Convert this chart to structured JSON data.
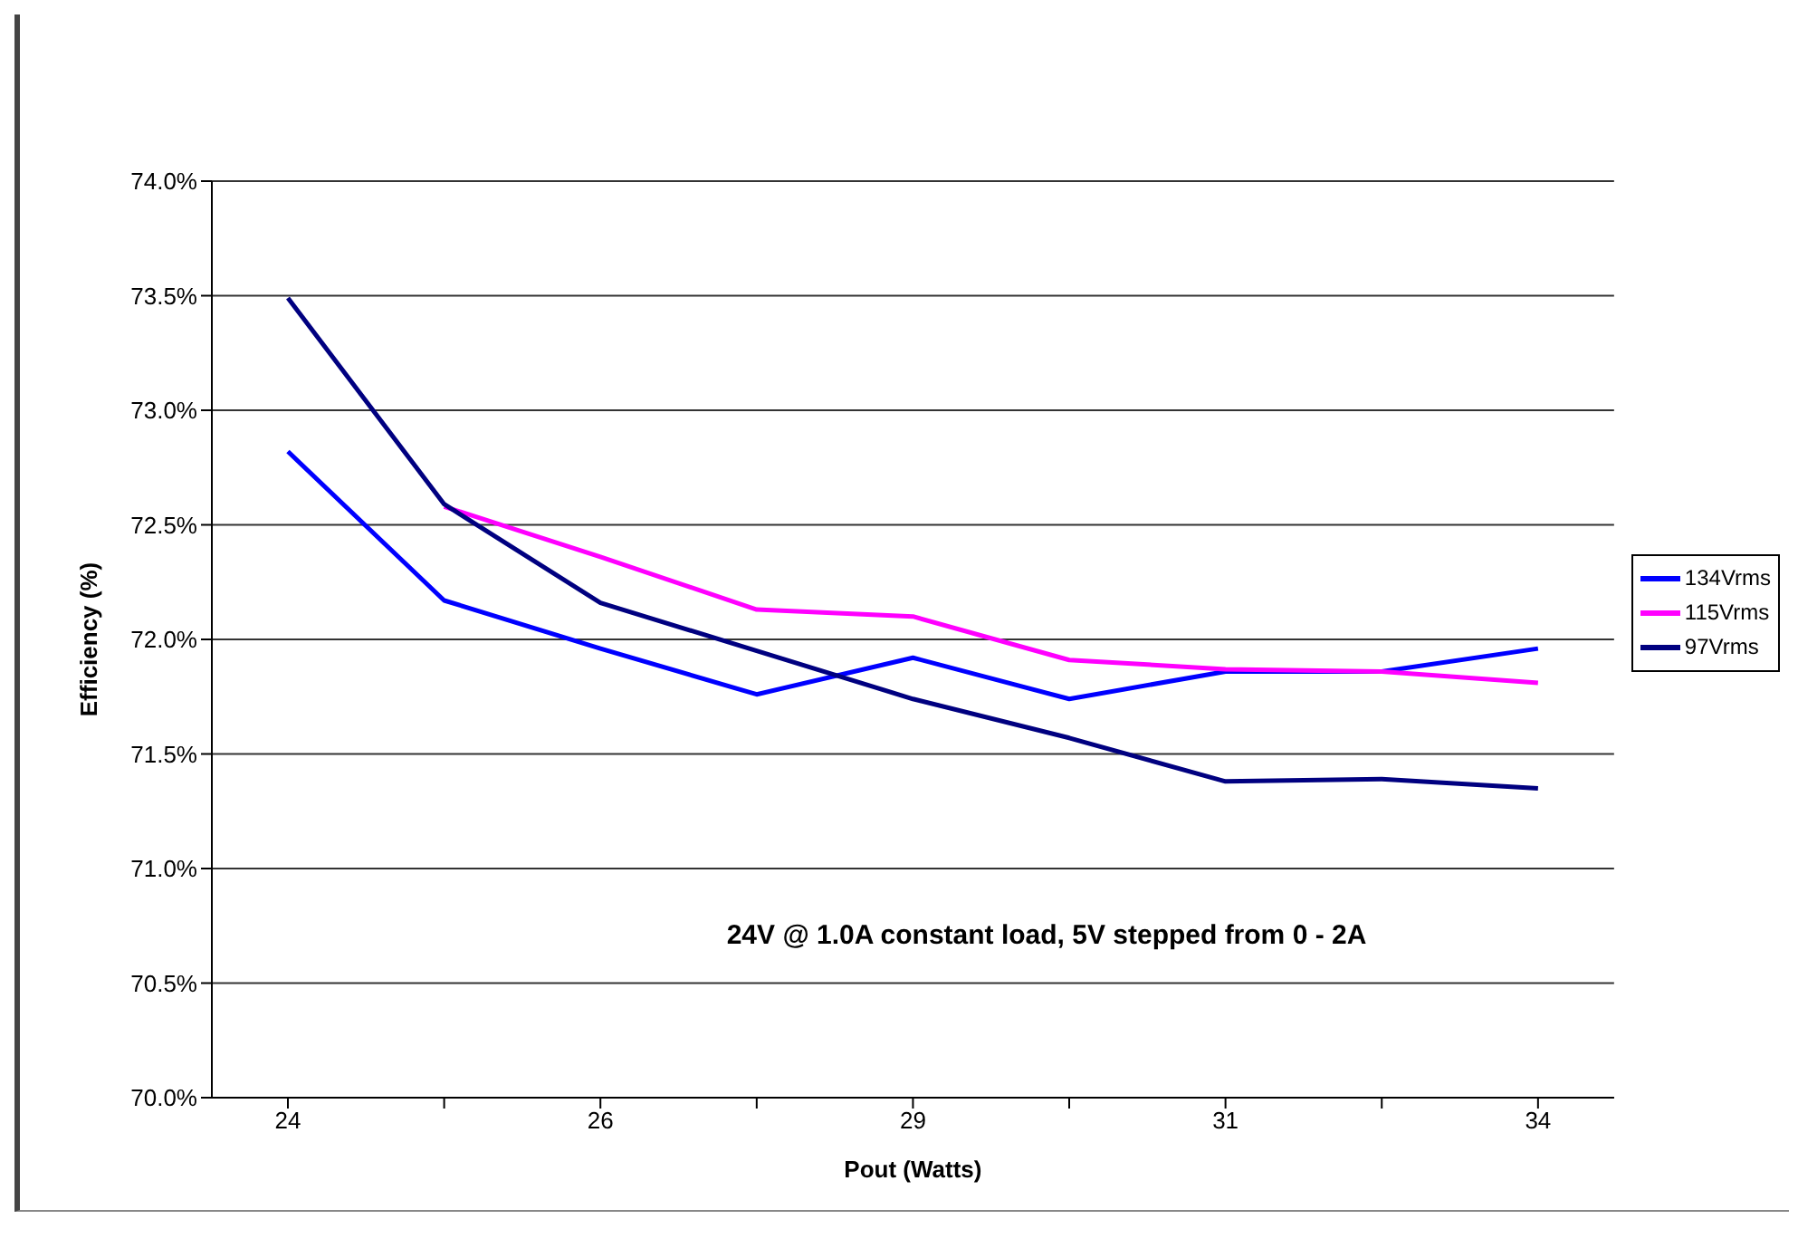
{
  "chart_data": {
    "type": "line",
    "xlabel": "Pout (Watts)",
    "ylabel": "Efficiency (%)",
    "categories": [
      "24",
      null,
      "26",
      null,
      "29",
      null,
      "31",
      null,
      "34"
    ],
    "series": [
      {
        "name": "134Vrms",
        "color": "#0000ff",
        "values": [
          72.82,
          72.17,
          71.96,
          71.76,
          71.92,
          71.74,
          71.86,
          71.86,
          71.96
        ]
      },
      {
        "name": "115Vrms",
        "color": "#ff00ff",
        "values": [
          null,
          72.58,
          72.36,
          72.13,
          72.1,
          71.91,
          71.87,
          71.86,
          71.81
        ]
      },
      {
        "name": "97Vrms",
        "color": "#000080",
        "values": [
          73.49,
          72.59,
          72.16,
          71.95,
          71.74,
          71.57,
          71.38,
          71.39,
          71.35
        ]
      }
    ],
    "ylim": [
      70,
      74
    ],
    "yticks": [
      {
        "value": 70,
        "label": "70.0%"
      },
      {
        "value": 70.5,
        "label": "70.5%"
      },
      {
        "value": 71,
        "label": "71.0%"
      },
      {
        "value": 71.5,
        "label": "71.5%"
      },
      {
        "value": 72,
        "label": "72.0%"
      },
      {
        "value": 72.5,
        "label": "72.5%"
      },
      {
        "value": 73,
        "label": "73.0%"
      },
      {
        "value": 73.5,
        "label": "73.5%"
      },
      {
        "value": 74,
        "label": "74.0%"
      }
    ],
    "grid": "y",
    "legend": "right",
    "marker": "none",
    "line_style": "solid",
    "annotations": [
      "24V @ 1.0A constant load, 5V stepped from 0 - 2A"
    ]
  }
}
